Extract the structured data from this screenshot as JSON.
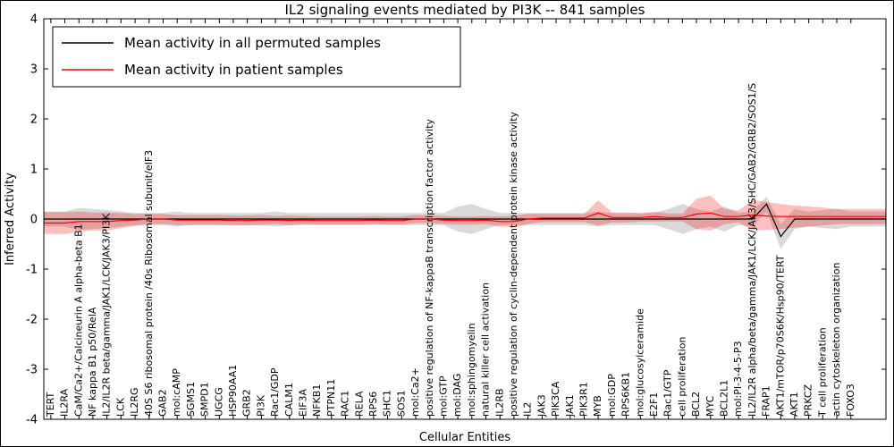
{
  "chart_data": {
    "type": "line",
    "title": "IL2 signaling events mediated by PI3K -- 841 samples",
    "xlabel": "Cellular Entities",
    "ylabel": "Inferred Activity",
    "ylim": [
      -4,
      4
    ],
    "yticks": [
      -4,
      -3,
      -2,
      -1,
      0,
      1,
      2,
      3,
      4
    ],
    "grid": false,
    "legend_position": "upper left",
    "categories": [
      "TERT",
      "IL2RA",
      "CaM/Ca2+/Calcineurin A alpha-beta B1",
      "NF kappa B1 p50/RelA",
      "IL2/IL2R beta/gamma/JAK1/LCK/JAK3/PI3K",
      "LCK",
      "IL2RG",
      "40S S6 ribosomal protein /40s Ribosomal subunit/eIF3",
      "GAB2",
      "mol:cAMP",
      "SGMS1",
      "SMPD1",
      "UGCG",
      "HSP90AA1",
      "GRB2",
      "PI3K",
      "Rac1/GDP",
      "CALM1",
      "EIF3A",
      "NFKB1",
      "PTPN11",
      "RAC1",
      "RELA",
      "RPS6",
      "SHC1",
      "SOS1",
      "mol:Ca2+",
      "positive regulation of NF-kappaB transcription factor activity",
      "mol:GTP",
      "mol:DAG",
      "mol:sphingomyelin",
      "natural killer cell activation",
      "IL2RB",
      "positive regulation of cyclin-dependent protein kinase activity",
      "IL2",
      "JAK3",
      "PIK3CA",
      "JAK1",
      "PIK3R1",
      "MYB",
      "mol:GDP",
      "RPS6KB1",
      "mol:glucosylceramide",
      "E2F1",
      "Rac1/GTP",
      "cell proliferation",
      "BCL2",
      "MYC",
      "BCL2L1",
      "mol:PI-3-4-5-P3",
      "IL2/IL2R alpha/beta/gamma/JAK1/LCK/JAK3/SHC/GAB2/GRB2/SOS1/S",
      "FRAP1",
      "AKT1/mTOR/p70S6K/Hsp90/TERT",
      "AKT1",
      "PRKCZ",
      "T cell proliferation",
      "actin cytoskeleton organization",
      "FOXO3"
    ],
    "series": [
      {
        "name": "Mean activity in all permuted samples",
        "color": "#000000",
        "band_opacity": 0.15,
        "band_name": "permuted-band",
        "line_name": "permuted-mean-line",
        "values": [
          0,
          0,
          0,
          0,
          0,
          0,
          0,
          0,
          0,
          0,
          0,
          0,
          0,
          0,
          0,
          0,
          0,
          0,
          0,
          0,
          0,
          0,
          0,
          0,
          0,
          0,
          0,
          0,
          0,
          0,
          0,
          0,
          0,
          0,
          0,
          0,
          0,
          0,
          0,
          0,
          0,
          0,
          0,
          0,
          0,
          0,
          0,
          0,
          0,
          0,
          0,
          0.3,
          -0.35,
          0,
          0,
          0,
          0,
          0
        ],
        "band_halfwidth": [
          0.15,
          0.15,
          0.22,
          0.2,
          0.18,
          0.15,
          0.12,
          0.12,
          0.12,
          0.15,
          0.12,
          0.12,
          0.12,
          0.12,
          0.12,
          0.12,
          0.15,
          0.12,
          0.12,
          0.12,
          0.12,
          0.12,
          0.12,
          0.12,
          0.12,
          0.12,
          0.12,
          0.12,
          0.12,
          0.25,
          0.3,
          0.2,
          0.12,
          0.12,
          0.12,
          0.12,
          0.12,
          0.12,
          0.12,
          0.15,
          0.12,
          0.12,
          0.12,
          0.12,
          0.2,
          0.3,
          0.2,
          0.15,
          0.25,
          0.12,
          0.15,
          0.15,
          0.25,
          0.2,
          0.15,
          0.18,
          0.2,
          0.15
        ]
      },
      {
        "name": "Mean activity in patient samples",
        "color": "#ff0000",
        "band_opacity": 0.25,
        "band_name": "patient-band",
        "line_name": "patient-mean-line",
        "values": [
          -0.08,
          -0.08,
          -0.05,
          -0.05,
          -0.05,
          -0.03,
          -0.02,
          0,
          0,
          -0.02,
          -0.02,
          -0.02,
          -0.02,
          -0.03,
          -0.03,
          -0.02,
          -0.02,
          -0.03,
          -0.02,
          -0.03,
          -0.03,
          -0.03,
          -0.03,
          -0.02,
          -0.03,
          -0.03,
          0,
          0,
          -0.02,
          -0.03,
          -0.03,
          -0.02,
          -0.05,
          -0.05,
          0,
          0.02,
          0.02,
          0.02,
          0.02,
          0.12,
          0.03,
          0.03,
          0.03,
          0.05,
          0.03,
          0.03,
          0.1,
          0.12,
          0.05,
          0.05,
          0.08,
          0.06,
          0.05,
          0.05,
          0.05,
          0.05,
          0.05,
          0.05
        ],
        "band_halfwidth": [
          0.22,
          0.22,
          0.2,
          0.18,
          0.18,
          0.15,
          0.12,
          0.1,
          0.1,
          0.1,
          0.1,
          0.1,
          0.1,
          0.1,
          0.1,
          0.1,
          0.08,
          0.1,
          0.08,
          0.08,
          0.08,
          0.08,
          0.08,
          0.08,
          0.08,
          0.08,
          0.08,
          0.08,
          0.08,
          0.08,
          0.08,
          0.08,
          0.1,
          0.12,
          0.1,
          0.08,
          0.08,
          0.08,
          0.08,
          0.25,
          0.1,
          0.1,
          0.08,
          0.1,
          0.08,
          0.08,
          0.3,
          0.35,
          0.15,
          0.12,
          0.3,
          0.28,
          0.25,
          0.22,
          0.2,
          0.18,
          0.15,
          0.15
        ]
      }
    ]
  }
}
